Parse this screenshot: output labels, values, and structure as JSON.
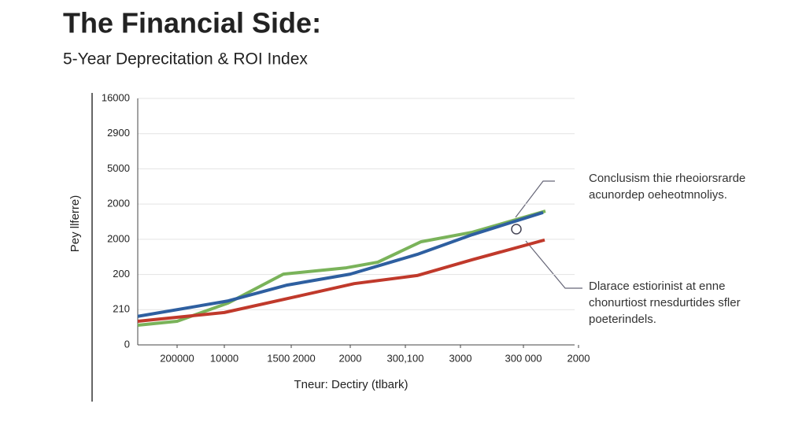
{
  "chart_data": {
    "type": "line",
    "title": "The Financial Side:",
    "subtitle": "5-Year Deprecitation & ROI Index",
    "y_label": "Pey llferre)",
    "x_label": "Tneur: Dectiry (tlbark)",
    "xlim": [
      0,
      11.1
    ],
    "ylim": [
      0,
      7
    ],
    "xticks": [
      {
        "value": 1,
        "label": "200000"
      },
      {
        "value": 2.2,
        "label": "10000"
      },
      {
        "value": 3.9,
        "label": "1500 2000"
      },
      {
        "value": 5.4,
        "label": "2000"
      },
      {
        "value": 6.8,
        "label": "300,100"
      },
      {
        "value": 8.2,
        "label": "3000"
      },
      {
        "value": 9.8,
        "label": "300 000"
      },
      {
        "value": 11.2,
        "label": "2000"
      }
    ],
    "yticks": [
      0,
      {
        "value": 1,
        "label": "210"
      },
      {
        "value": 2,
        "label": "200"
      },
      {
        "value": 3,
        "label": "2000"
      },
      {
        "value": 4,
        "label": "2000"
      },
      {
        "value": 5,
        "label": "5000"
      },
      {
        "value": 6,
        "label": "2900"
      },
      {
        "value": 7,
        "label": "16000"
      }
    ],
    "grid": true,
    "series": [
      {
        "color": "#7ab35a",
        "x": [
          0,
          1,
          2.3,
          3.7,
          5.3,
          6.1,
          7.2,
          8.5,
          10.36
        ],
        "values": [
          0.56,
          0.67,
          1.19,
          2.01,
          2.19,
          2.35,
          2.93,
          3.2,
          3.8
        ]
      },
      {
        "color": "#c0392b",
        "x": [
          0,
          2.2,
          3.9,
          5.5,
          7.1,
          8.5,
          10.34
        ],
        "values": [
          0.67,
          0.92,
          1.34,
          1.74,
          1.97,
          2.42,
          2.98
        ]
      },
      {
        "color": "#2e5fa0",
        "x": [
          0,
          2.3,
          3.8,
          5.4,
          7.1,
          8.5,
          10.3
        ],
        "values": [
          0.81,
          1.25,
          1.7,
          2.01,
          2.57,
          3.13,
          3.76
        ]
      }
    ],
    "annotations": [
      {
        "lines": [
          "Conclusism thie rheoiorsrarde",
          "acunordep oeheotmnoliys."
        ]
      },
      {
        "lines": [
          "Dlarace estiorinist at enne",
          "chonurtiost rnesdurtides sfler",
          "poeterindels."
        ]
      }
    ]
  }
}
